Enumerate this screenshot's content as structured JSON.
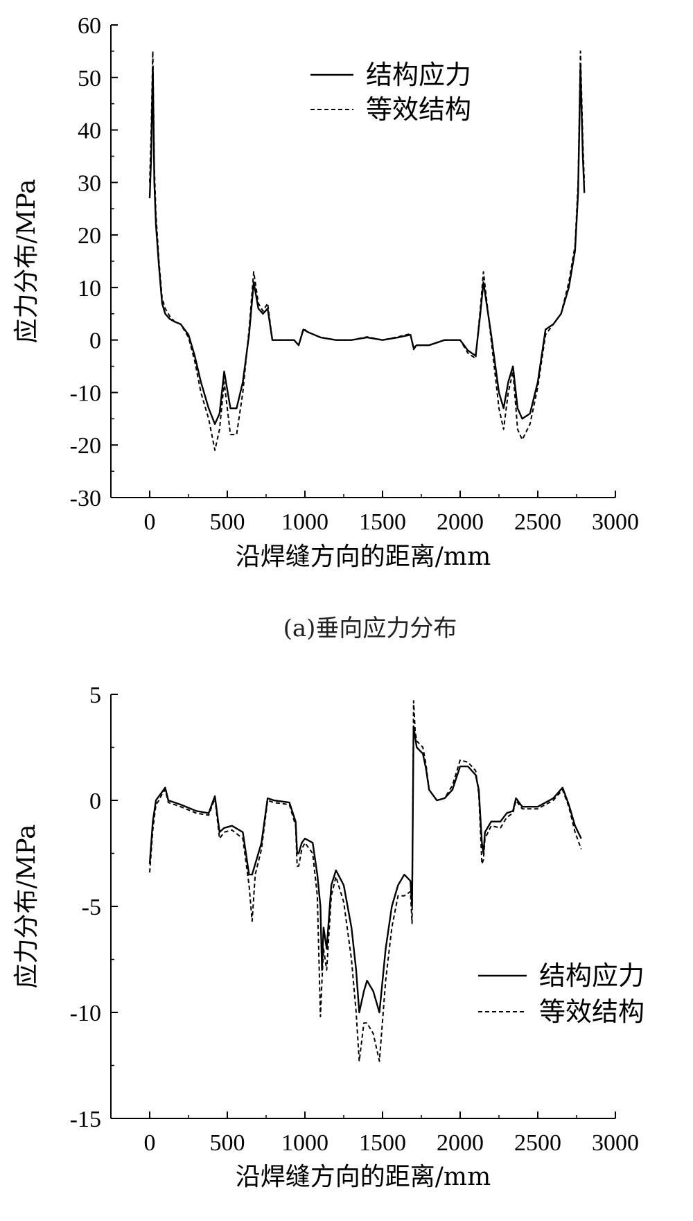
{
  "chart_data": [
    {
      "type": "line",
      "caption": "(a)垂向应力分布",
      "xlabel": "沿焊缝方向的距离/mm",
      "ylabel": "应力分布/MPa",
      "xlim": [
        -250,
        3000
      ],
      "ylim": [
        -30,
        60
      ],
      "xticks": [
        0,
        500,
        1000,
        1500,
        2000,
        2500,
        3000
      ],
      "yticks": [
        -30,
        -20,
        -10,
        0,
        10,
        20,
        30,
        40,
        50,
        60
      ],
      "legend_position": "top-center",
      "series": [
        {
          "name": "结构应力",
          "style": "solid",
          "x": [
            0,
            10,
            20,
            30,
            40,
            60,
            80,
            100,
            130,
            160,
            200,
            250,
            290,
            330,
            380,
            420,
            450,
            480,
            520,
            560,
            600,
            640,
            670,
            700,
            730,
            760,
            790,
            850,
            930,
            960,
            990,
            1020,
            1100,
            1200,
            1300,
            1400,
            1500,
            1600,
            1680,
            1700,
            1720,
            1800,
            1900,
            2000,
            2050,
            2100,
            2130,
            2150,
            2200,
            2250,
            2280,
            2310,
            2340,
            2370,
            2400,
            2450,
            2500,
            2550,
            2600,
            2650,
            2700,
            2740,
            2760,
            2775,
            2790,
            2800
          ],
          "values": [
            27,
            35,
            52,
            30,
            22,
            14,
            7,
            5,
            4,
            3.5,
            3,
            1,
            -3,
            -8,
            -13,
            -16,
            -14,
            -6,
            -13,
            -13,
            -8,
            1,
            11,
            6,
            5,
            6,
            0,
            0,
            0,
            -1,
            2,
            1.5,
            0.5,
            0,
            0,
            0.5,
            0,
            0.5,
            1,
            -1.5,
            -1,
            -1,
            0,
            0,
            -2,
            -3,
            5,
            11,
            1,
            -10,
            -13,
            -8,
            -5,
            -13,
            -15,
            -14,
            -8,
            2,
            3,
            5,
            10,
            17,
            28,
            52,
            35,
            28
          ]
        },
        {
          "name": "等效结构",
          "style": "dashed",
          "x": [
            0,
            10,
            20,
            30,
            40,
            60,
            80,
            100,
            130,
            160,
            200,
            250,
            290,
            330,
            380,
            420,
            450,
            480,
            520,
            560,
            600,
            640,
            670,
            700,
            730,
            760,
            790,
            850,
            930,
            960,
            990,
            1020,
            1100,
            1200,
            1300,
            1400,
            1500,
            1600,
            1680,
            1700,
            1720,
            1800,
            1900,
            2000,
            2050,
            2100,
            2130,
            2150,
            2200,
            2250,
            2280,
            2310,
            2340,
            2370,
            2400,
            2450,
            2500,
            2550,
            2600,
            2650,
            2700,
            2740,
            2760,
            2775,
            2790,
            2800
          ],
          "values": [
            30,
            40,
            55,
            33,
            24,
            15,
            8,
            6,
            4.5,
            3.5,
            3,
            0.5,
            -4,
            -10,
            -15,
            -21,
            -17,
            -8,
            -18,
            -18,
            -10,
            2,
            13,
            7,
            5.5,
            7,
            0,
            0,
            0,
            -1,
            2.2,
            1.5,
            0.5,
            0,
            0,
            0.6,
            0,
            0.6,
            1.2,
            -1.8,
            -1,
            -1,
            0,
            0,
            -2.5,
            -3.5,
            6,
            13,
            0,
            -13,
            -17,
            -10,
            -6,
            -17,
            -19,
            -16,
            -9,
            1,
            3,
            5,
            11,
            18,
            30,
            55,
            38,
            30
          ]
        }
      ]
    },
    {
      "type": "line",
      "caption": "",
      "xlabel": "沿焊缝方向的距离/mm",
      "ylabel": "应力分布/MPa",
      "xlim": [
        -250,
        3000
      ],
      "ylim": [
        -15,
        5
      ],
      "xticks": [
        0,
        500,
        1000,
        1500,
        2000,
        2500,
        3000
      ],
      "yticks": [
        -15,
        -10,
        -5,
        0,
        5
      ],
      "legend_position": "right",
      "series": [
        {
          "name": "结构应力",
          "style": "solid",
          "x": [
            0,
            20,
            40,
            60,
            80,
            100,
            120,
            200,
            300,
            380,
            420,
            450,
            480,
            530,
            600,
            640,
            660,
            680,
            720,
            760,
            800,
            900,
            940,
            950,
            960,
            980,
            1000,
            1050,
            1080,
            1100,
            1110,
            1120,
            1140,
            1170,
            1200,
            1250,
            1300,
            1330,
            1350,
            1380,
            1400,
            1440,
            1480,
            1520,
            1560,
            1600,
            1640,
            1680,
            1690,
            1700,
            1710,
            1720,
            1760,
            1780,
            1800,
            1850,
            1900,
            1950,
            2000,
            2050,
            2100,
            2120,
            2140,
            2150,
            2160,
            2200,
            2260,
            2300,
            2340,
            2360,
            2400,
            2500,
            2600,
            2660,
            2680,
            2700,
            2740,
            2780
          ],
          "values": [
            -3,
            -1,
            0,
            0.2,
            0.4,
            0.6,
            0,
            -0.2,
            -0.5,
            -0.6,
            0.2,
            -1.5,
            -1.3,
            -1.2,
            -1.5,
            -3.5,
            -3.5,
            -3,
            -2,
            0.1,
            0,
            -0.1,
            -1,
            -2.5,
            -2.5,
            -2,
            -1.8,
            -2,
            -3.5,
            -5,
            -8,
            -6,
            -7,
            -4,
            -3.3,
            -4,
            -6,
            -8,
            -10,
            -9,
            -8.5,
            -9,
            -10,
            -7,
            -5,
            -4,
            -3.5,
            -3.8,
            -5,
            3.5,
            3,
            2.5,
            2.2,
            1.5,
            0.5,
            0,
            0.1,
            0.5,
            1.6,
            1.6,
            1.2,
            0.5,
            -2,
            -2.5,
            -1.5,
            -1,
            -1,
            -0.6,
            -0.5,
            0.1,
            -0.3,
            -0.3,
            0.1,
            0.6,
            0.2,
            -0.2,
            -1.2,
            -1.8
          ]
        },
        {
          "name": "等效结构",
          "style": "dashed",
          "x": [
            0,
            20,
            40,
            60,
            80,
            100,
            120,
            200,
            300,
            380,
            420,
            450,
            480,
            530,
            600,
            640,
            660,
            680,
            720,
            760,
            800,
            900,
            940,
            950,
            960,
            980,
            1000,
            1050,
            1080,
            1100,
            1110,
            1120,
            1140,
            1170,
            1200,
            1250,
            1300,
            1330,
            1350,
            1380,
            1400,
            1440,
            1480,
            1520,
            1560,
            1600,
            1640,
            1680,
            1690,
            1700,
            1710,
            1720,
            1760,
            1780,
            1800,
            1850,
            1900,
            1950,
            2000,
            2050,
            2100,
            2120,
            2140,
            2150,
            2160,
            2200,
            2260,
            2300,
            2340,
            2360,
            2400,
            2500,
            2600,
            2660,
            2680,
            2700,
            2740,
            2780
          ],
          "values": [
            -3.4,
            -1.4,
            -0.2,
            0,
            0.3,
            0.5,
            -0.1,
            -0.3,
            -0.6,
            -0.7,
            0.1,
            -1.8,
            -1.5,
            -1.4,
            -1.8,
            -4,
            -5.7,
            -3.5,
            -2.3,
            0,
            -0.1,
            -0.2,
            -1.2,
            -3.1,
            -3.1,
            -2.3,
            -2,
            -2.5,
            -4.5,
            -10.2,
            -8.5,
            -7,
            -8,
            -4.5,
            -3.6,
            -4.8,
            -7.5,
            -10,
            -12.3,
            -10.5,
            -10.5,
            -11,
            -12.3,
            -8.5,
            -6,
            -4.5,
            -4.5,
            -4.3,
            -5.8,
            4.7,
            3.3,
            2.8,
            2.5,
            1.7,
            0.5,
            0,
            0.1,
            0.7,
            1.9,
            1.8,
            1.4,
            0.3,
            -3,
            -2.8,
            -1.8,
            -1.2,
            -1.3,
            -0.8,
            -0.6,
            0,
            -0.4,
            -0.4,
            0,
            0.5,
            0.1,
            -0.3,
            -1.5,
            -2.3
          ]
        }
      ]
    }
  ]
}
